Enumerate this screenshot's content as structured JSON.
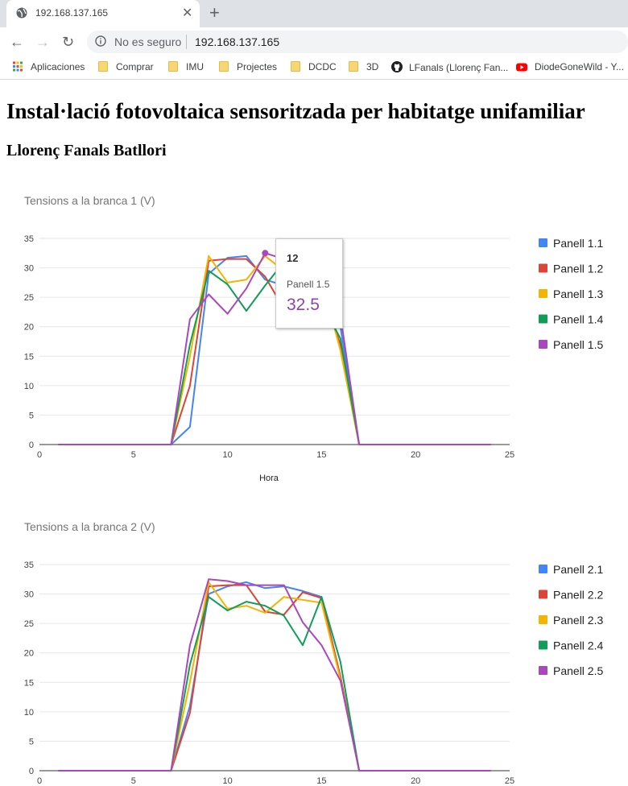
{
  "browser": {
    "tab_title": "192.168.137.165",
    "security_label": "No es seguro",
    "url": "192.168.137.165",
    "bookmarks": [
      "Aplicaciones",
      "Comprar",
      "IMU",
      "Projectes",
      "DCDC",
      "3D",
      "LFanals (Llorenç Fan...",
      "DiodeGoneWild - Y..."
    ]
  },
  "page": {
    "title": "Instal·lació fotovoltaica sensoritzada per habitatge unifamiliar",
    "subtitle": "Llorenç Fanals Batllori"
  },
  "tooltip": {
    "x_label": "12",
    "series": "Panell 1.5",
    "value": "32.5"
  },
  "colors": [
    "#4285f4",
    "#db4437",
    "#f4b400",
    "#0f9d58",
    "#ab47bc"
  ],
  "chart_data": [
    {
      "type": "line",
      "title": "Tensions a la branca 1 (V)",
      "xlabel": "Hora",
      "ylabel": "",
      "xlim": [
        0,
        25
      ],
      "ylim": [
        0,
        35
      ],
      "xticks": [
        0,
        5,
        10,
        15,
        20,
        25
      ],
      "yticks": [
        0,
        5,
        10,
        15,
        20,
        25,
        30,
        35
      ],
      "legend_position": "right",
      "x": [
        1,
        2,
        3,
        4,
        5,
        6,
        7,
        8,
        9,
        10,
        11,
        12,
        13,
        14,
        15,
        16,
        17,
        18,
        19,
        20,
        21,
        22,
        23,
        24
      ],
      "series": [
        {
          "name": "Panell 1.1",
          "values": [
            0,
            0,
            0,
            0,
            0,
            0,
            0,
            3,
            29,
            31.7,
            32,
            28,
            27,
            27.5,
            26.5,
            20,
            0,
            0,
            0,
            0,
            0,
            0,
            0,
            0
          ]
        },
        {
          "name": "Panell 1.2",
          "values": [
            0,
            0,
            0,
            0,
            0,
            0,
            0,
            10,
            31.2,
            31.5,
            31.5,
            28.5,
            23,
            27,
            26,
            17,
            0,
            0,
            0,
            0,
            0,
            0,
            0,
            0
          ]
        },
        {
          "name": "Panell 1.3",
          "values": [
            0,
            0,
            0,
            0,
            0,
            0,
            0,
            15,
            32,
            27.5,
            28,
            32,
            29.5,
            29,
            28,
            16,
            0,
            0,
            0,
            0,
            0,
            0,
            0,
            0
          ]
        },
        {
          "name": "Panell 1.4",
          "values": [
            0,
            0,
            0,
            0,
            0,
            0,
            0,
            17,
            29.5,
            27.2,
            22.7,
            27,
            31,
            29,
            24,
            18,
            0,
            0,
            0,
            0,
            0,
            0,
            0,
            0
          ]
        },
        {
          "name": "Panell 1.5",
          "values": [
            0,
            0,
            0,
            0,
            0,
            0,
            0,
            21.3,
            25.5,
            22.2,
            26.5,
            32.5,
            31.5,
            30,
            25,
            22,
            0,
            0,
            0,
            0,
            0,
            0,
            0,
            0
          ]
        }
      ]
    },
    {
      "type": "line",
      "title": "Tensions a la branca 2 (V)",
      "xlabel": "",
      "ylabel": "",
      "xlim": [
        0,
        25
      ],
      "ylim": [
        0,
        35
      ],
      "xticks": [
        0,
        5,
        10,
        15,
        20,
        25
      ],
      "yticks": [
        0,
        5,
        10,
        15,
        20,
        25,
        30,
        35
      ],
      "legend_position": "right",
      "x": [
        1,
        2,
        3,
        4,
        5,
        6,
        7,
        8,
        9,
        10,
        11,
        12,
        13,
        14,
        15,
        16,
        17,
        18,
        19,
        20,
        21,
        22,
        23,
        24
      ],
      "series": [
        {
          "name": "Panell 2.1",
          "values": [
            0,
            0,
            0,
            0,
            0,
            0,
            0,
            11,
            30,
            31.3,
            32,
            31,
            31.3,
            30.5,
            29.5,
            16,
            0,
            0,
            0,
            0,
            0,
            0,
            0,
            0
          ]
        },
        {
          "name": "Panell 2.2",
          "values": [
            0,
            0,
            0,
            0,
            0,
            0,
            0,
            9.8,
            31.3,
            31.5,
            31.5,
            27,
            26.5,
            30.3,
            29.3,
            16,
            0,
            0,
            0,
            0,
            0,
            0,
            0,
            0
          ]
        },
        {
          "name": "Panell 2.3",
          "values": [
            0,
            0,
            0,
            0,
            0,
            0,
            0,
            15,
            32,
            27.5,
            28,
            26.8,
            29.5,
            29,
            28.5,
            15.5,
            0,
            0,
            0,
            0,
            0,
            0,
            0,
            0
          ]
        },
        {
          "name": "Panell 2.4",
          "values": [
            0,
            0,
            0,
            0,
            0,
            0,
            0,
            18,
            29.5,
            27.2,
            28.7,
            28,
            26.3,
            21.3,
            29.5,
            18.5,
            0,
            0,
            0,
            0,
            0,
            0,
            0,
            0
          ]
        },
        {
          "name": "Panell 2.5",
          "values": [
            0,
            0,
            0,
            0,
            0,
            0,
            0,
            21.3,
            32.5,
            32.2,
            31.5,
            31.5,
            31.5,
            25.2,
            21.3,
            15.3,
            0,
            0,
            0,
            0,
            0,
            0,
            0,
            0
          ]
        }
      ]
    }
  ]
}
